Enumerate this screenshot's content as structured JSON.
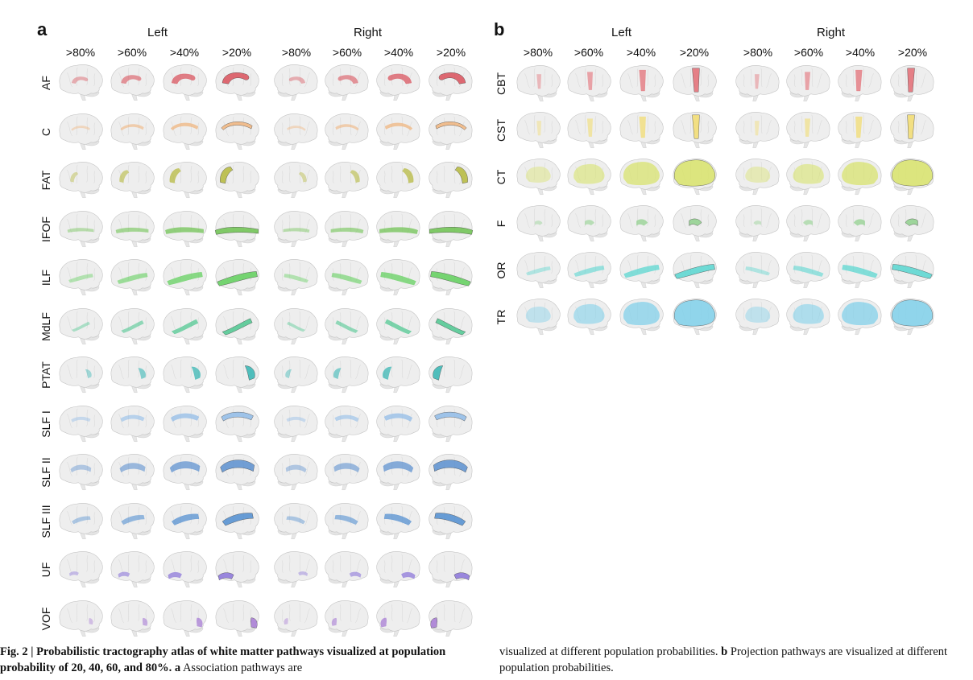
{
  "panel_a": {
    "letter": "a",
    "hemispheres": [
      "Left",
      "Right"
    ],
    "thresholds": [
      ">80%",
      ">60%",
      ">40%",
      ">20%",
      ">80%",
      ">60%",
      ">40%",
      ">20%"
    ],
    "rows": [
      {
        "label": "AF",
        "color": "#d9505a",
        "shape": "arc"
      },
      {
        "label": "C",
        "color": "#f0b47c",
        "shape": "cingulum"
      },
      {
        "label": "FAT",
        "color": "#b5b83a",
        "shape": "frontal"
      },
      {
        "label": "IFOF",
        "color": "#6cc24f",
        "shape": "long"
      },
      {
        "label": "ILF",
        "color": "#5fcf5a",
        "shape": "temporal"
      },
      {
        "label": "MdLF",
        "color": "#4cc78f",
        "shape": "diag"
      },
      {
        "label": "PTAT",
        "color": "#33b5b3",
        "shape": "post"
      },
      {
        "label": "SLF I",
        "color": "#8fbbe8",
        "shape": "dorsal"
      },
      {
        "label": "SLF II",
        "color": "#5b8fcf",
        "shape": "dorsal2"
      },
      {
        "label": "SLF III",
        "color": "#4f8dd0",
        "shape": "mid"
      },
      {
        "label": "UF",
        "color": "#8a73d9",
        "shape": "hook"
      },
      {
        "label": "VOF",
        "color": "#a679d4",
        "shape": "occipital"
      }
    ]
  },
  "panel_b": {
    "letter": "b",
    "hemispheres": [
      "Left",
      "Right"
    ],
    "thresholds": [
      ">80%",
      ">60%",
      ">40%",
      ">20%",
      ">80%",
      ">60%",
      ">40%",
      ">20%"
    ],
    "rows": [
      {
        "label": "CBT",
        "color": "#e36b73",
        "shape": "vertical"
      },
      {
        "label": "CST",
        "color": "#f2dc6e",
        "shape": "vertical"
      },
      {
        "label": "CT",
        "color": "#d8e36a",
        "shape": "fill"
      },
      {
        "label": "F",
        "color": "#8fd08c",
        "shape": "small"
      },
      {
        "label": "OR",
        "color": "#57d6d0",
        "shape": "temporal"
      },
      {
        "label": "TR",
        "color": "#7fd0ea",
        "shape": "fill"
      }
    ]
  },
  "caption": {
    "left_bold": "Fig. 2 | Probabilistic tractography atlas of white matter pathways visualized at population probability of 20, 40, 60, and 80%.",
    "left_bold_letter": "a",
    "left_rest": "Association pathways are",
    "right_text_1": "visualized at different population probabilities.",
    "right_bold_letter": "b",
    "right_text_2": "Projection pathways are visualized at different population probabilities."
  }
}
